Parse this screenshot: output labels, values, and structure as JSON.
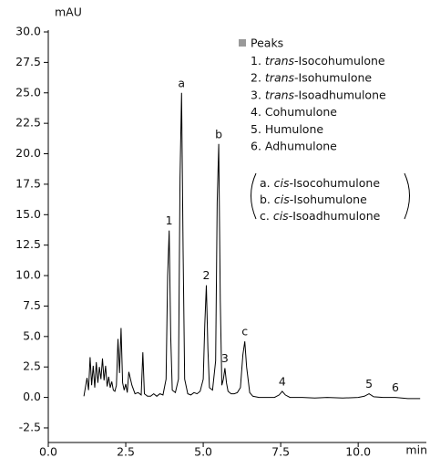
{
  "chart_data": {
    "type": "line",
    "y_label": "mAU",
    "x_label": "min",
    "xlim": [
      0,
      12.2
    ],
    "ylim": [
      -3.7,
      30
    ],
    "xticks": [
      {
        "value": 0,
        "label": "0.0"
      },
      2.5,
      {
        "value": 5,
        "label": "5.0"
      },
      7.5,
      {
        "value": 10,
        "label": "10.0"
      }
    ],
    "yticks": [
      -2.5,
      {
        "value": 0,
        "label": "0.0"
      },
      2.5,
      {
        "value": 5,
        "label": "5.0"
      },
      7.5,
      {
        "value": 10,
        "label": "10.0"
      },
      12.5,
      {
        "value": 15,
        "label": "15.0"
      },
      17.5,
      {
        "value": 20,
        "label": "20.0"
      },
      22.5,
      {
        "value": 25,
        "label": "25.0"
      },
      27.5,
      {
        "value": 30,
        "label": "30.0"
      }
    ],
    "grid": false,
    "series": [
      {
        "color": "#000000",
        "x": [
          1.15,
          1.25,
          1.3,
          1.35,
          1.4,
          1.45,
          1.5,
          1.55,
          1.6,
          1.65,
          1.7,
          1.75,
          1.8,
          1.85,
          1.9,
          1.95,
          2.0,
          2.05,
          2.1,
          2.15,
          2.2,
          2.25,
          2.3,
          2.35,
          2.4,
          2.45,
          2.5,
          2.55,
          2.6,
          2.7,
          2.8,
          2.9,
          3.0,
          3.05,
          3.1,
          3.2,
          3.3,
          3.4,
          3.5,
          3.6,
          3.7,
          3.8,
          3.85,
          3.9,
          3.95,
          4.0,
          4.1,
          4.2,
          4.25,
          4.3,
          4.35,
          4.4,
          4.5,
          4.6,
          4.7,
          4.8,
          4.9,
          5.0,
          5.05,
          5.1,
          5.15,
          5.2,
          5.3,
          5.4,
          5.45,
          5.5,
          5.55,
          5.6,
          5.65,
          5.7,
          5.75,
          5.8,
          5.9,
          6.0,
          6.1,
          6.2,
          6.28,
          6.34,
          6.4,
          6.5,
          6.6,
          6.8,
          7.0,
          7.3,
          7.45,
          7.55,
          7.65,
          7.8,
          8.2,
          8.6,
          9.0,
          9.5,
          10.0,
          10.2,
          10.35,
          10.5,
          10.8,
          11.2,
          11.6,
          12.0
        ],
        "values": [
          0.1,
          1.6,
          0.6,
          3.3,
          1.0,
          2.6,
          0.8,
          2.9,
          1.2,
          2.5,
          1.5,
          3.2,
          1.4,
          2.6,
          0.9,
          1.7,
          0.8,
          1.3,
          0.6,
          0.5,
          1.0,
          4.8,
          2.0,
          5.7,
          1.2,
          0.6,
          1.1,
          0.4,
          2.1,
          1.0,
          0.3,
          0.4,
          0.2,
          3.7,
          0.3,
          0.1,
          0.1,
          0.3,
          0.1,
          0.3,
          0.2,
          1.5,
          10,
          13.7,
          5,
          0.6,
          0.4,
          1.5,
          18,
          25.0,
          12,
          1.5,
          0.3,
          0.2,
          0.4,
          0.3,
          0.5,
          1.5,
          6,
          9.2,
          4,
          0.8,
          0.6,
          3,
          16,
          20.8,
          8,
          1.0,
          1.5,
          2.4,
          1.2,
          0.5,
          0.3,
          0.3,
          0.4,
          0.8,
          3.5,
          4.6,
          2.5,
          0.4,
          0.1,
          0.0,
          0.0,
          0.0,
          0.2,
          0.5,
          0.2,
          0.0,
          0.0,
          -0.05,
          0.0,
          -0.05,
          0.0,
          0.1,
          0.3,
          0.05,
          0.0,
          0.0,
          -0.1,
          -0.1
        ]
      }
    ],
    "annotations": [
      {
        "text": "1",
        "x": 3.9,
        "y": 13.7
      },
      {
        "text": "a",
        "x": 4.3,
        "y": 25.0
      },
      {
        "text": "2",
        "x": 5.1,
        "y": 9.2
      },
      {
        "text": "b",
        "x": 5.5,
        "y": 20.8
      },
      {
        "text": "3",
        "x": 5.7,
        "y": 2.4
      },
      {
        "text": "c",
        "x": 6.34,
        "y": 4.6
      },
      {
        "text": "4",
        "x": 7.55,
        "y": 0.5
      },
      {
        "text": "5",
        "x": 10.35,
        "y": 0.3
      },
      {
        "text": "6",
        "x": 11.2,
        "y": 0.0
      }
    ],
    "legend_title": "Peaks",
    "legend_items": [
      [
        "1. ",
        "trans",
        "-Isocohumulone"
      ],
      [
        "2. ",
        "trans",
        "-Isohumulone"
      ],
      [
        "3. ",
        "trans",
        "-Isoadhumulone"
      ],
      [
        "4. Cohumulone"
      ],
      [
        "5. Humulone"
      ],
      [
        "6. Adhumulone"
      ]
    ],
    "cis_items": [
      [
        "a. ",
        "cis",
        "-Isocohumulone"
      ],
      [
        "b. ",
        "cis",
        "-Isohumulone"
      ],
      [
        "c. ",
        "cis",
        "-Isoadhumulone"
      ]
    ]
  }
}
